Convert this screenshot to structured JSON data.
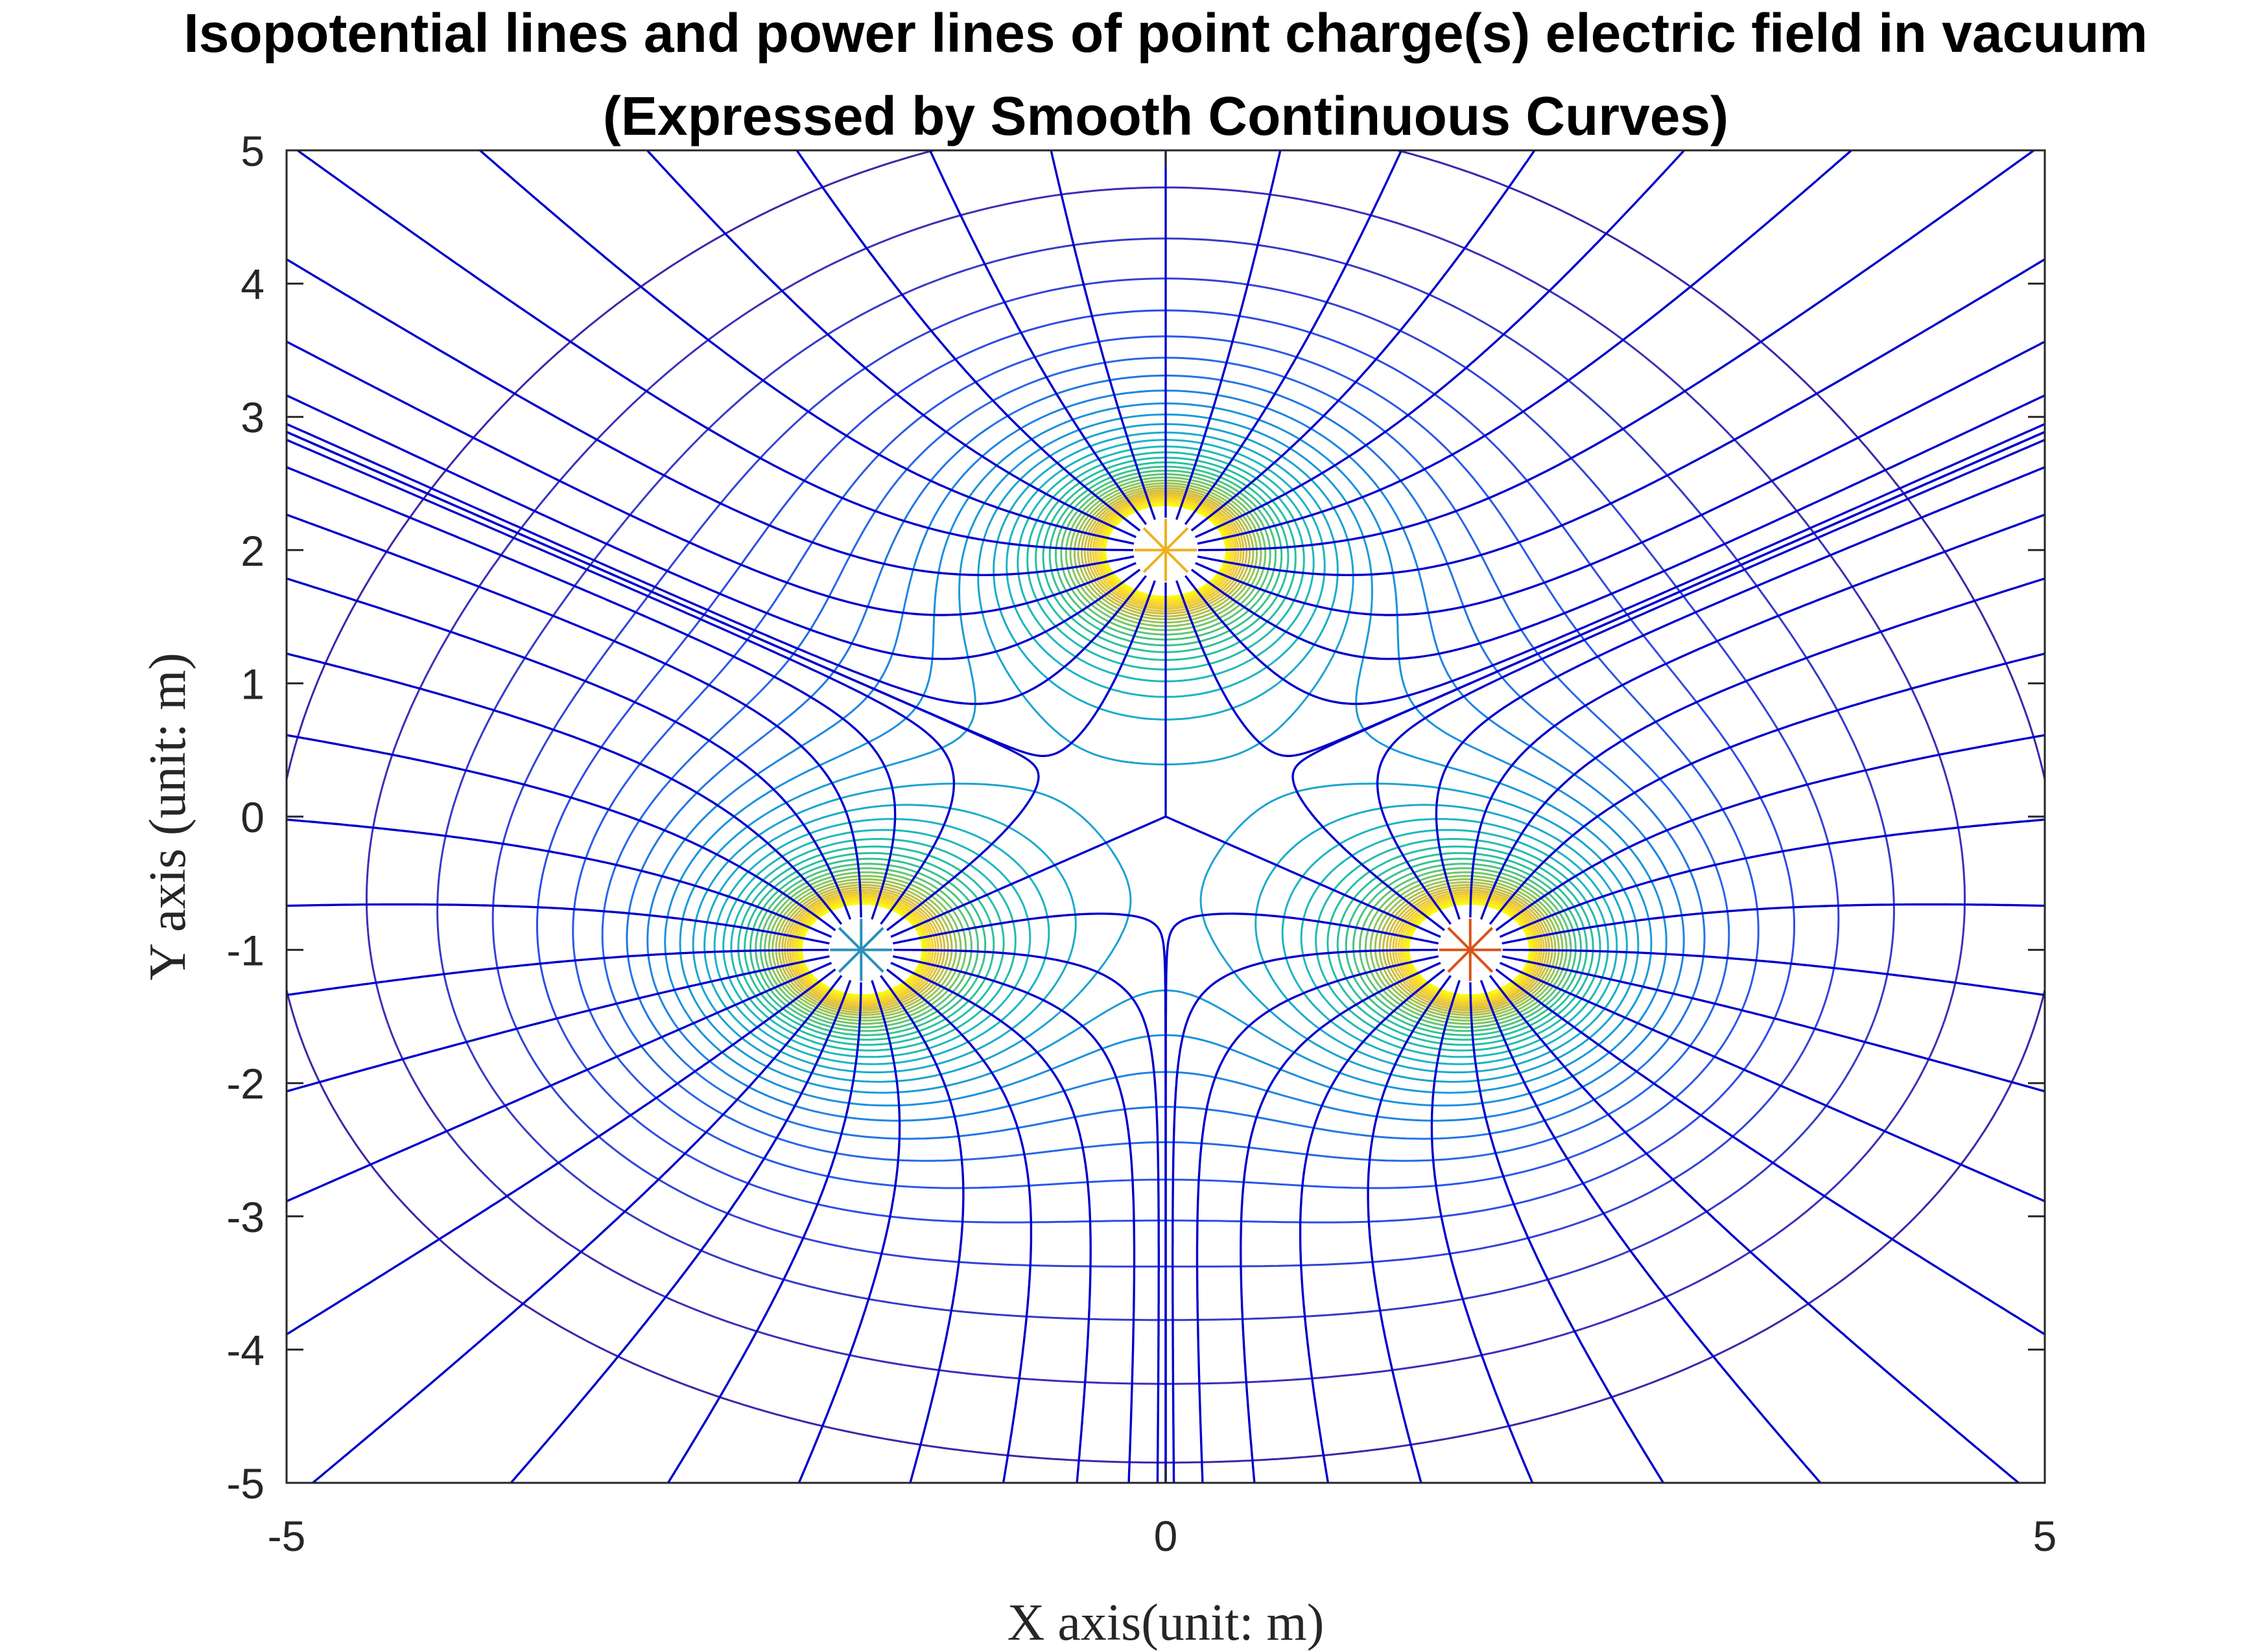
{
  "chart_data": {
    "type": "contour",
    "title": "Isopotential lines and power lines of point charge(s) electric field in vacuum",
    "subtitle": "(Expressed by Smooth Continuous Curves)",
    "xlabel": "X axis(unit: m)",
    "ylabel": "Y axis (unit: m)",
    "xlim": [
      -5,
      5
    ],
    "ylim": [
      -5,
      5
    ],
    "xticks": [
      -5,
      0,
      5
    ],
    "yticks": [
      5,
      4,
      3,
      2,
      1,
      0,
      -1,
      -2,
      -3,
      -4,
      -5
    ],
    "grid": false,
    "charges": [
      {
        "x": 0,
        "y": 2,
        "color": "#EDB120"
      },
      {
        "x": -1.732,
        "y": -1,
        "color": "#2A8FBD"
      },
      {
        "x": 1.732,
        "y": -1,
        "color": "#D95319"
      }
    ],
    "field_line_color": "#0000CC",
    "contour_colors": [
      "#3D26A8",
      "#2E4FEB",
      "#1A8FE0",
      "#1BB5C5",
      "#2EC296",
      "#85C65E",
      "#D4BB3C",
      "#FBD62D",
      "#F9FB0E"
    ]
  }
}
